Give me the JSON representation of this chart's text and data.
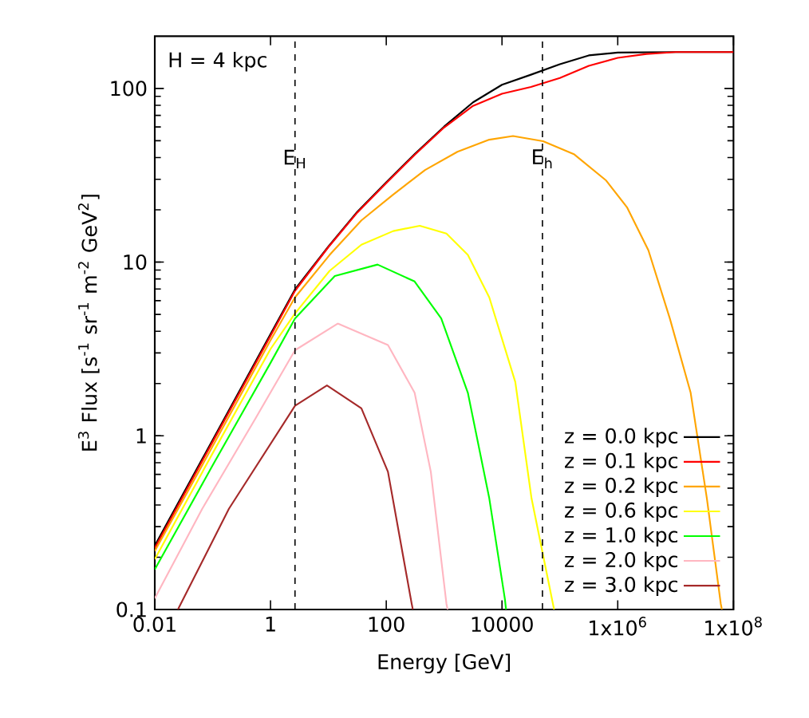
{
  "chart_data": {
    "type": "line",
    "xlabel": "Energy [GeV]",
    "ylabel": "E$^{3}$ Flux [s$^{-1}$ sr$^{-1}$ m$^{-2}$ GeV$^{2}$]",
    "annotations": [
      "H = 4 kpc"
    ],
    "log": "xy",
    "xlim": [
      0.01,
      100000000
    ],
    "ylim": [
      0.1,
      200
    ],
    "xticks": [
      0.01,
      1,
      100,
      10000,
      {
        "value": 1000000,
        "label": "1x10$^{6}$"
      },
      {
        "value": 100000000,
        "label": "1x10$^{8}$"
      }
    ],
    "yticks": [
      0.1,
      1,
      10,
      100
    ],
    "legend": "bottom right",
    "ref_lines": [
      {
        "axis": "x",
        "value": 2.65,
        "label": "E$_{H}$",
        "color": "#000000",
        "line_style": "dashed"
      },
      {
        "axis": "x",
        "value": 50000,
        "label": "E$_{h}$",
        "color": "#000000",
        "line_style": "dashed"
      }
    ],
    "series": [
      {
        "name": "z = 0.0 kpc",
        "color": "#000000",
        "x": [
          0.01,
          0.1,
          1,
          2.65,
          10,
          31.6,
          100,
          316,
          1000,
          3162,
          10000,
          31620,
          100000,
          316200,
          1000000,
          10000000,
          100000000
        ],
        "values": [
          0.233,
          0.946,
          3.85,
          6.97,
          12.3,
          19.5,
          28.8,
          42.2,
          60.3,
          83.2,
          105,
          120,
          138,
          155,
          161,
          162,
          162
        ]
      },
      {
        "name": "z = 0.1 kpc",
        "color": "#ff0000",
        "x": [
          0.01,
          0.1,
          1,
          2.65,
          10,
          31.6,
          100,
          316,
          1000,
          3162,
          10000,
          31620,
          100000,
          316200,
          1000000,
          3162000,
          10000000,
          100000000
        ],
        "values": [
          0.226,
          0.923,
          3.76,
          6.84,
          12.2,
          19.3,
          28.5,
          41.7,
          59.6,
          79.4,
          93.3,
          102,
          115,
          135,
          150,
          158,
          162,
          162
        ]
      },
      {
        "name": "z = 0.2 kpc",
        "color": "#ffa500",
        "x": [
          0.01,
          0.1,
          1,
          2.65,
          10.5,
          37.2,
          132,
          468,
          1698,
          6026,
          15490,
          51290,
          177800,
          631000,
          1445000,
          3388000,
          7943000,
          18200000,
          34670000,
          60260000,
          63100000
        ],
        "values": [
          0.217,
          0.871,
          3.55,
          6.27,
          11.0,
          17.4,
          24.5,
          33.9,
          43.2,
          50.7,
          53.2,
          49.7,
          41.7,
          29.5,
          20.7,
          11.7,
          4.74,
          1.77,
          0.437,
          0.108,
          0.1
        ]
      },
      {
        "name": "z = 0.6 kpc",
        "color": "#ffff00",
        "x": [
          0.01,
          0.1,
          1,
          2.65,
          10.5,
          37.2,
          132,
          380,
          1096,
          2570,
          6026,
          16980,
          32360,
          75860,
          79430
        ],
        "values": [
          0.195,
          0.794,
          3.16,
          5.07,
          8.91,
          12.6,
          15.1,
          16.2,
          14.6,
          11.0,
          6.27,
          2.04,
          0.437,
          0.108,
          0.1
        ]
      },
      {
        "name": "z = 1.0 kpc",
        "color": "#00ff00",
        "x": [
          0.01,
          0.1,
          1,
          2.65,
          12.9,
          70.8,
          309,
          891,
          2570,
          6026,
          11220,
          11750
        ],
        "values": [
          0.17,
          0.676,
          2.63,
          4.74,
          8.32,
          9.68,
          7.74,
          4.74,
          1.77,
          0.437,
          0.115,
          0.1
        ]
      },
      {
        "name": "z = 2.0 kpc",
        "color": "#ffb6c1",
        "x": [
          0.01,
          0.0661,
          0.55,
          2.65,
          14.5,
          107,
          309,
          589,
          1096,
          1148
        ],
        "values": [
          0.116,
          0.38,
          1.26,
          3.11,
          4.43,
          3.33,
          1.77,
          0.621,
          0.108,
          0.1
        ]
      },
      {
        "name": "z = 3.0 kpc",
        "color": "#a52a2a",
        "x": [
          0.0251,
          0.191,
          2.65,
          9.44,
          37.2,
          107,
          275,
          288
        ],
        "values": [
          0.1,
          0.38,
          1.49,
          1.95,
          1.44,
          0.621,
          0.108,
          0.1
        ]
      }
    ]
  }
}
